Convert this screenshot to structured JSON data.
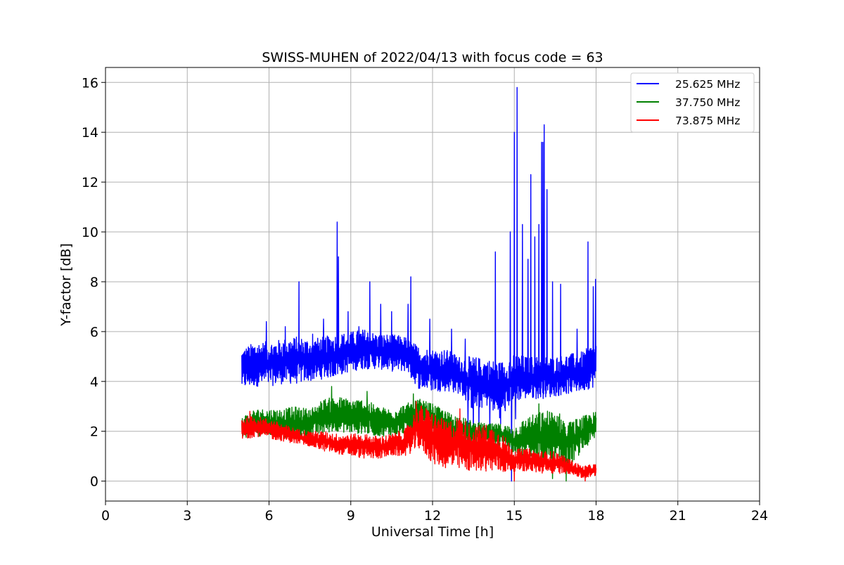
{
  "chart_data": {
    "type": "line",
    "title": "SWISS-MUHEN of 2022/04/13 with focus code = 63",
    "xlabel": "Universal Time [h]",
    "ylabel": "Y-factor [dB]",
    "xlim": [
      0,
      24
    ],
    "ylim": [
      -0.8,
      16.6
    ],
    "xticks": [
      0,
      3,
      6,
      9,
      12,
      15,
      18,
      21,
      24
    ],
    "yticks": [
      0,
      2,
      4,
      6,
      8,
      10,
      12,
      14,
      16
    ],
    "grid": true,
    "legend_position": "top-right",
    "series": [
      {
        "name": "25.625 MHz",
        "color": "#0000ff",
        "band": [
          [
            5.0,
            3.7,
            5.3
          ],
          [
            5.5,
            3.8,
            5.6
          ],
          [
            6.0,
            3.8,
            5.6
          ],
          [
            6.5,
            3.9,
            5.7
          ],
          [
            7.0,
            3.9,
            5.8
          ],
          [
            7.5,
            4.0,
            5.7
          ],
          [
            8.0,
            4.1,
            5.8
          ],
          [
            8.5,
            4.2,
            5.9
          ],
          [
            9.0,
            4.4,
            6.0
          ],
          [
            9.5,
            4.5,
            6.1
          ],
          [
            10.0,
            4.5,
            5.9
          ],
          [
            10.5,
            4.4,
            5.9
          ],
          [
            11.0,
            4.4,
            5.8
          ],
          [
            11.5,
            3.7,
            5.4
          ],
          [
            12.0,
            3.6,
            5.3
          ],
          [
            12.5,
            3.6,
            5.3
          ],
          [
            13.0,
            3.5,
            5.0
          ],
          [
            13.5,
            2.8,
            5.0
          ],
          [
            14.0,
            3.0,
            4.9
          ],
          [
            14.5,
            2.5,
            4.8
          ],
          [
            15.0,
            3.2,
            5.1
          ],
          [
            15.5,
            3.3,
            5.0
          ],
          [
            16.0,
            3.3,
            5.0
          ],
          [
            16.5,
            3.4,
            5.0
          ],
          [
            17.0,
            3.5,
            5.1
          ],
          [
            17.5,
            3.6,
            5.2
          ],
          [
            18.0,
            3.8,
            5.6
          ]
        ],
        "spikes": [
          [
            5.9,
            6.4
          ],
          [
            6.6,
            6.2
          ],
          [
            7.1,
            8.0
          ],
          [
            7.6,
            5.9
          ],
          [
            8.0,
            6.5
          ],
          [
            8.5,
            10.4
          ],
          [
            8.55,
            9.0
          ],
          [
            8.9,
            6.8
          ],
          [
            9.3,
            6.2
          ],
          [
            9.7,
            8.0
          ],
          [
            10.1,
            7.1
          ],
          [
            10.5,
            6.8
          ],
          [
            11.1,
            7.1
          ],
          [
            11.2,
            8.2
          ],
          [
            11.9,
            6.5
          ],
          [
            12.7,
            6.1
          ],
          [
            13.2,
            5.7
          ],
          [
            14.3,
            9.2
          ],
          [
            14.85,
            10.0
          ],
          [
            15.0,
            14.0
          ],
          [
            15.1,
            15.8
          ],
          [
            15.3,
            10.3
          ],
          [
            15.5,
            8.9
          ],
          [
            15.6,
            12.3
          ],
          [
            15.75,
            9.8
          ],
          [
            15.9,
            10.3
          ],
          [
            16.0,
            13.6
          ],
          [
            16.05,
            13.6
          ],
          [
            16.1,
            14.3
          ],
          [
            16.2,
            11.7
          ],
          [
            16.4,
            8.0
          ],
          [
            16.7,
            7.9
          ],
          [
            17.3,
            6.1
          ],
          [
            17.7,
            9.6
          ],
          [
            17.9,
            7.8
          ],
          [
            17.98,
            8.1
          ]
        ],
        "dips": [
          [
            13.3,
            2.2
          ],
          [
            13.5,
            0.8
          ],
          [
            13.7,
            1.7
          ],
          [
            14.1,
            2.0
          ],
          [
            14.5,
            2.3
          ],
          [
            14.9,
            0.0
          ],
          [
            15.05,
            2.5
          ]
        ]
      },
      {
        "name": "37.750 MHz",
        "color": "#008000",
        "band": [
          [
            5.0,
            1.7,
            2.6
          ],
          [
            5.5,
            1.8,
            2.9
          ],
          [
            6.0,
            1.8,
            2.9
          ],
          [
            6.5,
            1.7,
            2.9
          ],
          [
            7.0,
            1.6,
            3.0
          ],
          [
            7.5,
            1.7,
            2.9
          ],
          [
            8.0,
            1.9,
            3.3
          ],
          [
            8.5,
            2.0,
            3.4
          ],
          [
            9.0,
            1.9,
            3.3
          ],
          [
            9.5,
            1.9,
            3.3
          ],
          [
            10.0,
            1.8,
            3.0
          ],
          [
            10.5,
            1.8,
            2.9
          ],
          [
            11.0,
            1.9,
            3.1
          ],
          [
            11.5,
            2.1,
            3.3
          ],
          [
            12.0,
            2.1,
            3.1
          ],
          [
            12.5,
            1.6,
            2.8
          ],
          [
            13.0,
            1.5,
            2.6
          ],
          [
            13.5,
            1.4,
            2.4
          ],
          [
            14.0,
            1.4,
            2.3
          ],
          [
            14.5,
            1.4,
            2.3
          ],
          [
            15.0,
            0.9,
            2.2
          ],
          [
            15.5,
            1.0,
            2.6
          ],
          [
            16.0,
            0.7,
            2.8
          ],
          [
            16.5,
            0.7,
            2.9
          ],
          [
            17.0,
            0.6,
            2.4
          ],
          [
            17.5,
            1.2,
            2.6
          ],
          [
            18.0,
            1.7,
            2.8
          ]
        ],
        "spikes": [
          [
            8.3,
            3.8
          ],
          [
            9.6,
            3.6
          ],
          [
            11.3,
            3.5
          ],
          [
            15.9,
            3.1
          ],
          [
            16.4,
            3.4
          ]
        ],
        "dips": [
          [
            16.4,
            0.1
          ],
          [
            16.9,
            0.0
          ],
          [
            12.5,
            1.1
          ]
        ]
      },
      {
        "name": "73.875 MHz",
        "color": "#ff0000",
        "band": [
          [
            5.0,
            1.6,
            2.6
          ],
          [
            5.5,
            1.8,
            2.6
          ],
          [
            6.0,
            1.7,
            2.5
          ],
          [
            6.5,
            1.6,
            2.3
          ],
          [
            7.0,
            1.5,
            2.1
          ],
          [
            7.5,
            1.4,
            2.0
          ],
          [
            8.0,
            1.2,
            2.0
          ],
          [
            8.5,
            1.1,
            1.9
          ],
          [
            9.0,
            1.0,
            1.9
          ],
          [
            9.5,
            0.9,
            1.9
          ],
          [
            10.0,
            0.9,
            1.8
          ],
          [
            10.5,
            1.0,
            1.9
          ],
          [
            11.0,
            1.0,
            2.1
          ],
          [
            11.5,
            1.3,
            3.1
          ],
          [
            12.0,
            0.7,
            2.8
          ],
          [
            12.5,
            0.5,
            2.4
          ],
          [
            13.0,
            0.4,
            2.6
          ],
          [
            13.5,
            0.4,
            2.2
          ],
          [
            14.0,
            0.4,
            2.3
          ],
          [
            14.5,
            0.3,
            2.0
          ],
          [
            15.0,
            0.4,
            1.3
          ],
          [
            15.5,
            0.4,
            1.3
          ],
          [
            16.0,
            0.3,
            1.2
          ],
          [
            16.5,
            0.3,
            1.2
          ],
          [
            17.0,
            0.3,
            0.9
          ],
          [
            17.5,
            0.1,
            0.6
          ],
          [
            18.0,
            0.2,
            0.7
          ]
        ],
        "spikes": [
          [
            11.4,
            3.2
          ],
          [
            13.0,
            2.9
          ],
          [
            5.3,
            2.8
          ]
        ],
        "dips": [
          [
            15.0,
            0.0
          ],
          [
            17.6,
            0.0
          ]
        ]
      }
    ]
  }
}
